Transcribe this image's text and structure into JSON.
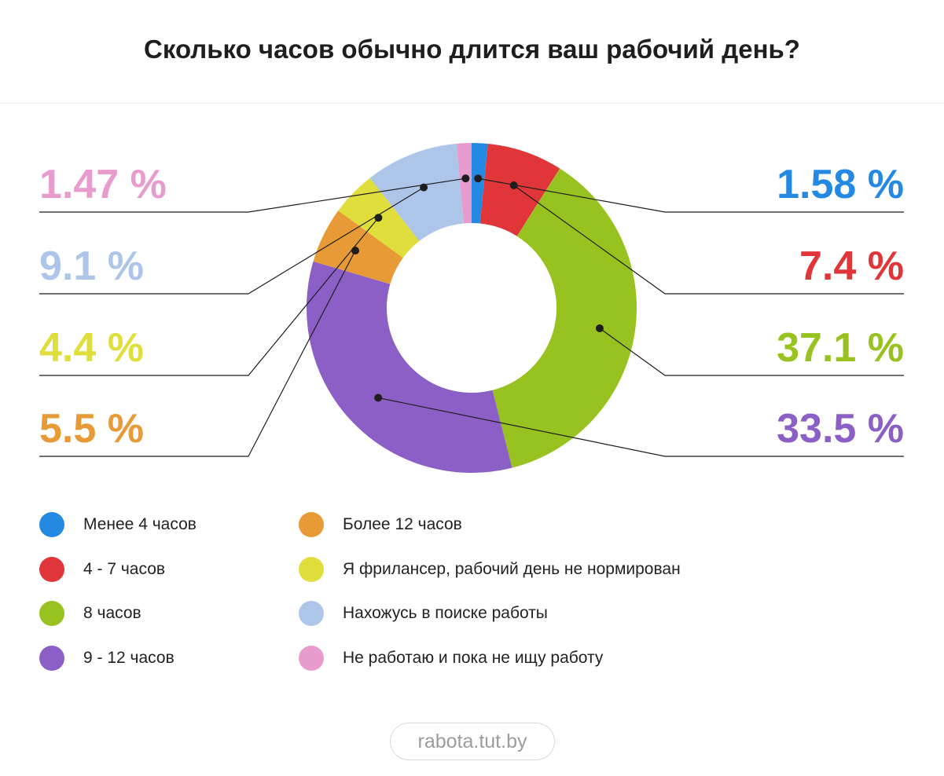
{
  "title": "Сколько часов обычно длится ваш рабочий день?",
  "source": "rabota.tut.by",
  "chart_data": {
    "type": "pie",
    "title": "Сколько часов обычно длится ваш рабочий день?",
    "categories": [
      "Менее 4 часов",
      "4 - 7 часов",
      "8 часов",
      "9 - 12 часов",
      "Более 12 часов",
      "Я фрилансер, рабочий день не нормирован",
      "Нахожусь в поиске работы",
      "Не работаю и пока не ищу работу"
    ],
    "values": [
      1.58,
      7.4,
      37.1,
      33.5,
      5.5,
      4.4,
      9.1,
      1.47
    ],
    "value_labels": [
      "1.58 %",
      "7.4 %",
      "37.1 %",
      "33.5 %",
      "5.5 %",
      "4.4 %",
      "9.1 %",
      "1.47 %"
    ],
    "colors": [
      "#2489e3",
      "#e03639",
      "#98c21f",
      "#8b5fc6",
      "#e79a35",
      "#e0de3c",
      "#aec5ea",
      "#e89cce"
    ],
    "donut": true,
    "label_sides": [
      "right",
      "right",
      "right",
      "right",
      "left",
      "left",
      "left",
      "left"
    ],
    "legend_placement": "bottom"
  }
}
